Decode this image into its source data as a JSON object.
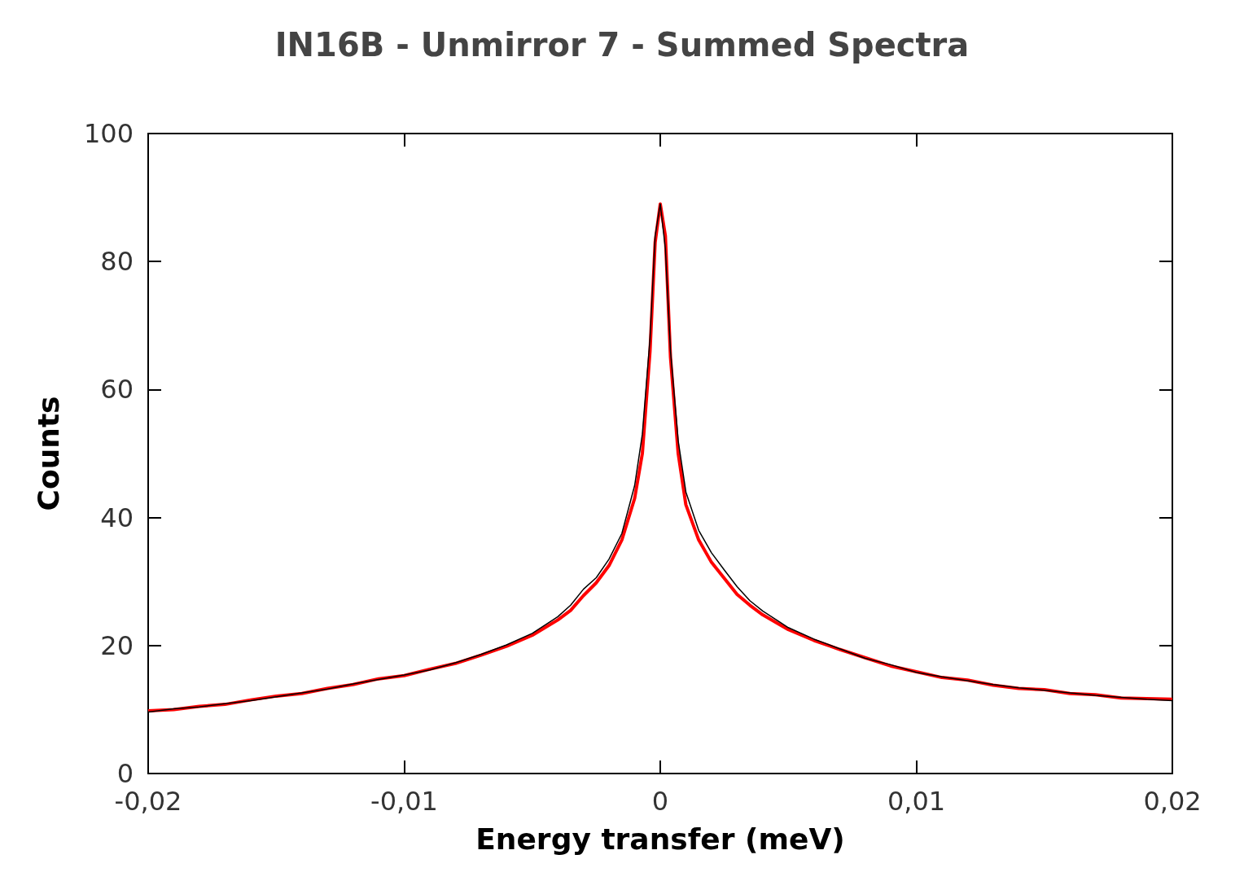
{
  "chart_data": {
    "type": "line",
    "title": "IN16B - Unmirror 7 - Summed Spectra",
    "xlabel": "Energy transfer (meV)",
    "ylabel": "Counts",
    "x": [
      -0.02,
      -0.019,
      -0.018,
      -0.017,
      -0.016,
      -0.015,
      -0.014,
      -0.013,
      -0.012,
      -0.011,
      -0.01,
      -0.009,
      -0.008,
      -0.007,
      -0.006,
      -0.005,
      -0.004,
      -0.0035,
      -0.003,
      -0.0025,
      -0.002,
      -0.0015,
      -0.001,
      -0.0007,
      -0.0004,
      -0.0002,
      0,
      0.0002,
      0.0004,
      0.0007,
      0.001,
      0.0015,
      0.002,
      0.0025,
      0.003,
      0.0035,
      0.004,
      0.005,
      0.006,
      0.007,
      0.008,
      0.009,
      0.01,
      0.011,
      0.012,
      0.013,
      0.014,
      0.015,
      0.016,
      0.017,
      0.018,
      0.019,
      0.02
    ],
    "series": [
      {
        "color": "#000000",
        "values": [
          9.6,
          10.1,
          10.4,
          10.9,
          11.4,
          12.0,
          12.6,
          13.2,
          14.0,
          14.7,
          15.4,
          16.2,
          17.3,
          18.6,
          20.1,
          21.9,
          24.5,
          26.3,
          28.8,
          30.6,
          33.5,
          37.5,
          45,
          53,
          68,
          84,
          89,
          82,
          66,
          52,
          44,
          38,
          34.5,
          31.8,
          29.2,
          27,
          25.4,
          22.8,
          21,
          19.5,
          18,
          17,
          15.8,
          15.1,
          14.5,
          13.9,
          13.4,
          13,
          12.6,
          12.2,
          11.9,
          11.6,
          11.4
        ]
      },
      {
        "color": "#ff0000",
        "values": [
          9.8,
          10.0,
          10.5,
          10.8,
          11.5,
          12.1,
          12.5,
          13.3,
          13.9,
          14.8,
          15.3,
          16.3,
          17.2,
          18.5,
          19.9,
          21.6,
          24.0,
          25.5,
          27.8,
          29.8,
          32.5,
          36.5,
          43,
          50,
          66,
          83,
          89,
          84,
          65,
          50,
          42,
          36.5,
          33,
          30.5,
          28,
          26.3,
          24.8,
          22.5,
          20.8,
          19.4,
          18.1,
          16.8,
          15.9,
          15.0,
          14.6,
          13.8,
          13.3,
          13.1,
          12.5,
          12.3,
          11.8,
          11.7,
          11.6
        ]
      }
    ],
    "xlim": [
      -0.02,
      0.02
    ],
    "xticks": [
      {
        "value": -0.02,
        "label": "-0,02"
      },
      {
        "value": -0.01,
        "label": "-0,01"
      },
      0,
      {
        "value": 0.01,
        "label": "0,01"
      },
      {
        "value": 0.02,
        "label": "0,02"
      }
    ],
    "ylim": [
      0,
      100
    ],
    "yticks": [
      0,
      20,
      40,
      60,
      80,
      100
    ],
    "grid": false,
    "marker": "none",
    "line_style": "solid"
  }
}
